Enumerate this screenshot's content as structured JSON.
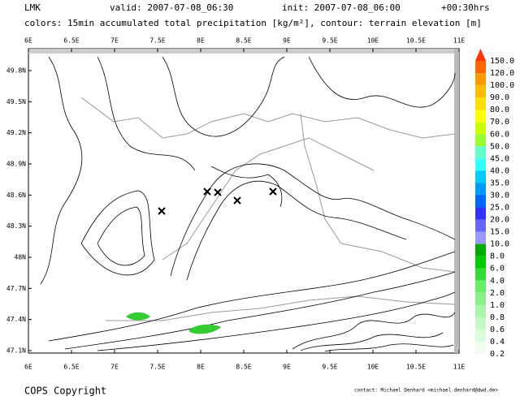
{
  "header": {
    "model": "LMK",
    "valid": "valid: 2007-07-08_06:30",
    "init": "init: 2007-07-08_06:00",
    "lead": "+00:30hrs",
    "description": "colors: 15min accumulated total precipitation [kg/m²], contour: terrain elevation [m]"
  },
  "map": {
    "lon_labels": [
      "6E",
      "6.5E",
      "7E",
      "7.5E",
      "8E",
      "8.5E",
      "9E",
      "9.5E",
      "10E",
      "10.5E",
      "11E"
    ],
    "lat_labels": [
      "49.8N",
      "49.5N",
      "49.2N",
      "48.9N",
      "48.6N",
      "48.3N",
      "48N",
      "47.7N",
      "47.4N",
      "47.1N"
    ]
  },
  "colorbar": {
    "labels": [
      "150.0",
      "120.0",
      "100.0",
      "90.0",
      "80.0",
      "70.0",
      "60.0",
      "50.0",
      "45.0",
      "40.0",
      "35.0",
      "30.0",
      "25.0",
      "20.0",
      "15.0",
      "10.0",
      "8.0",
      "6.0",
      "4.0",
      "2.0",
      "1.0",
      "0.8",
      "0.6",
      "0.4",
      "0.2"
    ],
    "colors": [
      "#ff3300",
      "#ff6600",
      "#ff9900",
      "#ffbb00",
      "#ffdd00",
      "#ffff00",
      "#ccff00",
      "#99ff33",
      "#66ffcc",
      "#33ffff",
      "#00ccff",
      "#0099ff",
      "#0066ff",
      "#3333ff",
      "#6666ff",
      "#9999ff",
      "#00aa00",
      "#00cc00",
      "#33dd33",
      "#66ee66",
      "#88f088",
      "#aaf5aa",
      "#c4f8c4",
      "#ddfbdd",
      "#f0fdf0"
    ]
  },
  "footer": {
    "copyright": "COPS Copyright",
    "contact": "contact: Michael Denhard <michael.denhard@dwd.de>"
  }
}
